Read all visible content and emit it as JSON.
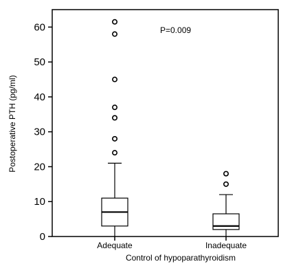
{
  "chart_data": {
    "type": "boxplot",
    "xlabel": "Control of hypoparathyroidism",
    "ylabel": "Postoperative PTH (pg/ml)",
    "ylim": [
      0,
      65
    ],
    "yticks": [
      0,
      10,
      20,
      30,
      40,
      50,
      60
    ],
    "categories": [
      "Adequate",
      "Inadequate"
    ],
    "boxes": [
      {
        "category": "Adequate",
        "whisker_low": 0,
        "q1": 3,
        "median": 7,
        "q3": 11,
        "whisker_high": 21,
        "outliers": [
          24,
          28,
          34,
          37,
          45,
          58,
          61.5
        ]
      },
      {
        "category": "Inadequate",
        "whisker_low": 0,
        "q1": 2,
        "median": 3,
        "q3": 6.5,
        "whisker_high": 12,
        "outliers": [
          15,
          18
        ]
      }
    ],
    "annotation": "P=0.009",
    "grid": false
  }
}
